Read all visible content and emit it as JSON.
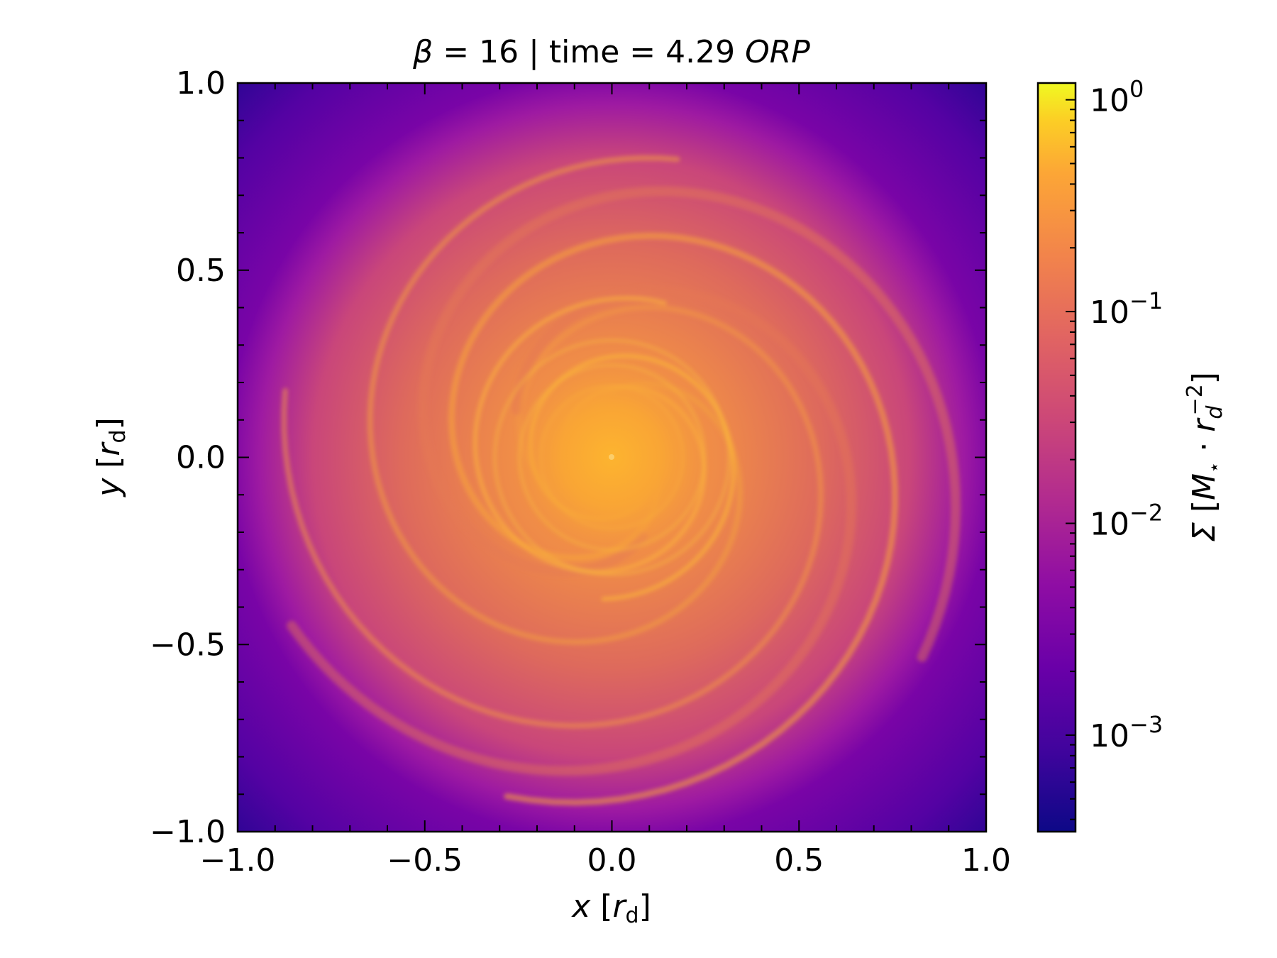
{
  "chart_data": {
    "type": "heatmap",
    "title_parts": {
      "symbol": "β",
      "eq1": " = 16 | time = 4.29 ",
      "unit": "ORP"
    },
    "xlabel": {
      "var": "x",
      "open": " [",
      "r": "r",
      "sub": "d",
      "close": "]"
    },
    "ylabel": {
      "var": "y",
      "open": " [",
      "r": "r",
      "sub": "d",
      "close": "]"
    },
    "xlim": [
      -1.0,
      1.0
    ],
    "ylim": [
      -1.0,
      1.0
    ],
    "xticks": [
      -1.0,
      -0.5,
      0.0,
      0.5,
      1.0
    ],
    "yticks": [
      -1.0,
      -0.5,
      0.0,
      0.5,
      1.0
    ],
    "xtick_labels": [
      "−1.0",
      "−0.5",
      "0.0",
      "0.5",
      "1.0"
    ],
    "ytick_labels": [
      "−1.0",
      "−0.5",
      "0.0",
      "0.5",
      "1.0"
    ],
    "colorbar": {
      "scale": "log",
      "vmin": 0.00035,
      "vmax": 1.2,
      "colormap": "plasma",
      "ticks": [
        0.001,
        0.01,
        0.1,
        1
      ],
      "tick_labels": [
        {
          "base": "10",
          "exp": "−3"
        },
        {
          "base": "10",
          "exp": "−2"
        },
        {
          "base": "10",
          "exp": "−1"
        },
        {
          "base": "10",
          "exp": "0"
        }
      ],
      "label": {
        "sigma": "Σ",
        "open": " [",
        "m": "M",
        "star": "⋆",
        "dot": " · ",
        "r": "r",
        "sub": "d",
        "sup": "−2",
        "close": "]"
      }
    },
    "field_description": "surface density of a spiral disc, peak near center"
  }
}
